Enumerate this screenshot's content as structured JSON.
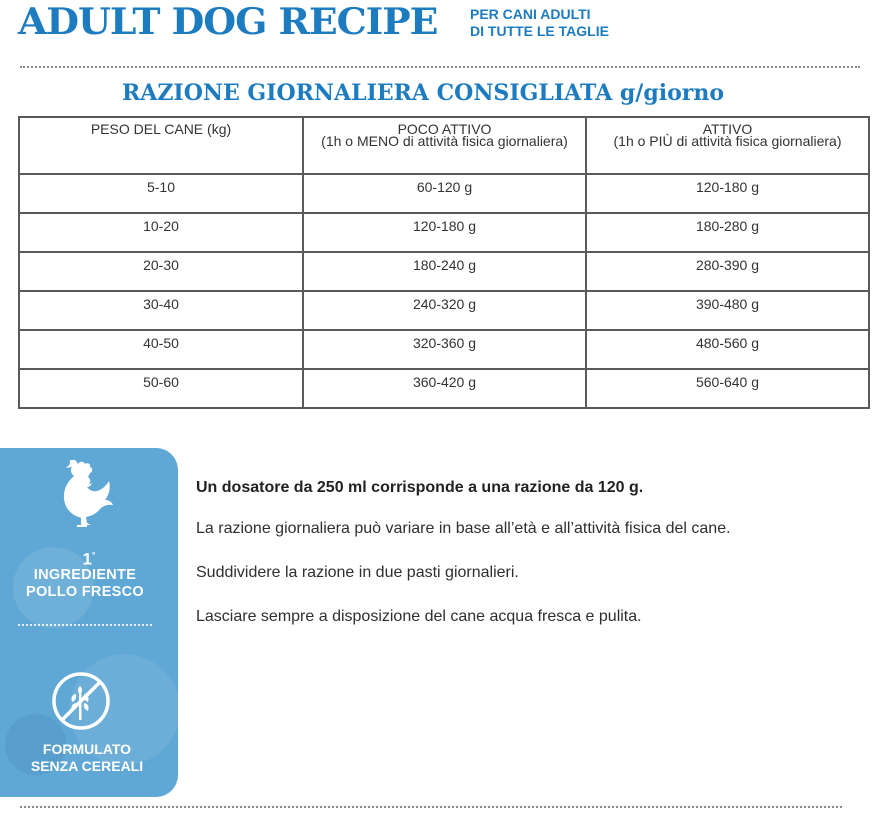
{
  "header": {
    "title": "ADULT DOG RECIPE",
    "subtitle_line1": "PER CANI ADULTI",
    "subtitle_line2": "DI TUTTE LE TAGLIE"
  },
  "ration": {
    "title": "RAZIONE GIORNALIERA CONSIGLIATA g/giorno",
    "columns": [
      {
        "label": "PESO DEL CANE (kg)",
        "note": ""
      },
      {
        "label": "POCO ATTIVO",
        "note": "(1h o MENO di attività fisica giornaliera)"
      },
      {
        "label": "ATTIVO",
        "note": "(1h o PIÙ di attività fisica giornaliera)"
      }
    ],
    "rows": [
      {
        "weight": "5-10",
        "low": "60-120 g",
        "high": "120-180 g"
      },
      {
        "weight": "10-20",
        "low": "120-180 g",
        "high": "180-280 g"
      },
      {
        "weight": "20-30",
        "low": "180-240 g",
        "high": "280-390 g"
      },
      {
        "weight": "30-40",
        "low": "240-320 g",
        "high": "390-480 g"
      },
      {
        "weight": "40-50",
        "low": "320-360 g",
        "high": "480-560 g"
      },
      {
        "weight": "50-60",
        "low": "360-420 g",
        "high": "560-640 g"
      }
    ]
  },
  "side_panel": {
    "first_number": "1",
    "first_suffix": "°",
    "ingredient_line1": "INGREDIENTE",
    "ingredient_line2": "POLLO FRESCO",
    "grain_line1": "FORMULATO",
    "grain_line2": "SENZA CEREALI",
    "icons": [
      "chicken-icon",
      "no-grain-icon"
    ],
    "color": "#5fa7d5"
  },
  "info": {
    "dosage": "Un dosatore da 250 ml corrisponde a una razione da 120 g.",
    "variation": "La razione giornaliera può variare in base all’età e all’attività fisica del cane.",
    "split": "Suddividere la razione in due pasti giornalieri.",
    "water": "Lasciare sempre a disposizione del cane acqua fresca e pulita."
  },
  "colors": {
    "brand_blue": "#1d7cc0",
    "table_border": "#5a5a5a"
  }
}
